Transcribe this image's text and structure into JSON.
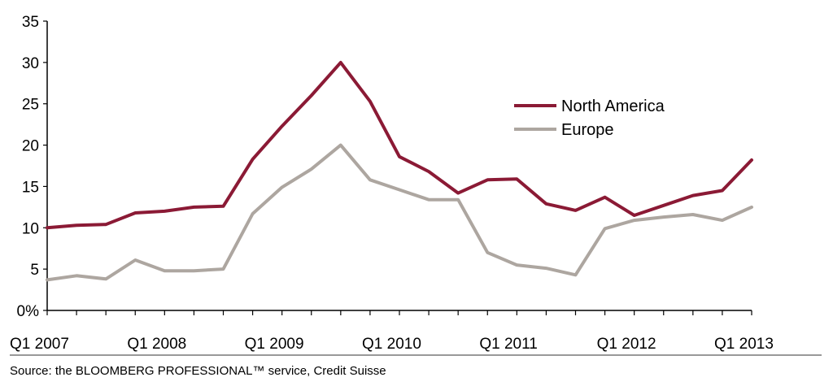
{
  "chart_data": {
    "type": "line",
    "x": [
      "Q1 2007",
      "Q2 2007",
      "Q3 2007",
      "Q4 2007",
      "Q1 2008",
      "Q2 2008",
      "Q3 2008",
      "Q4 2008",
      "Q1 2009",
      "Q2 2009",
      "Q3 2009",
      "Q4 2009",
      "Q1 2010",
      "Q2 2010",
      "Q3 2010",
      "Q4 2010",
      "Q1 2011",
      "Q2 2011",
      "Q3 2011",
      "Q4 2011",
      "Q1 2012",
      "Q2 2012",
      "Q3 2012",
      "Q4 2012",
      "Q1 2013"
    ],
    "xtick_labels": [
      "Q1 2007",
      "Q1 2008",
      "Q1 2009",
      "Q1 2010",
      "Q1 2011",
      "Q1 2012",
      "Q1 2013"
    ],
    "ylim": [
      0,
      35
    ],
    "yticks": [
      0,
      5,
      10,
      15,
      20,
      25,
      30,
      35
    ],
    "ytick_labels": [
      "0%",
      "5",
      "10",
      "15",
      "20",
      "25",
      "30",
      "35"
    ],
    "legend_position": "upper-right-inside",
    "grid": false,
    "series": [
      {
        "name": "North America",
        "color": "#8B1A35",
        "values": [
          10.0,
          10.3,
          10.4,
          11.8,
          12.0,
          12.5,
          12.6,
          18.3,
          22.3,
          26.0,
          30.0,
          25.3,
          18.6,
          16.8,
          14.2,
          15.8,
          15.9,
          12.9,
          12.1,
          13.7,
          11.5,
          12.7,
          13.9,
          14.5,
          18.2
        ]
      },
      {
        "name": "Europe",
        "color": "#ADA6A0",
        "values": [
          3.7,
          4.2,
          3.8,
          6.1,
          4.8,
          4.8,
          5.0,
          11.7,
          14.9,
          17.1,
          20.0,
          15.8,
          14.6,
          13.4,
          13.4,
          7.0,
          5.5,
          5.1,
          4.3,
          9.9,
          10.9,
          11.3,
          11.6,
          10.9,
          12.5
        ]
      }
    ]
  },
  "source": "Source: the BLOOMBERG PROFESSIONAL™ service, Credit Suisse"
}
